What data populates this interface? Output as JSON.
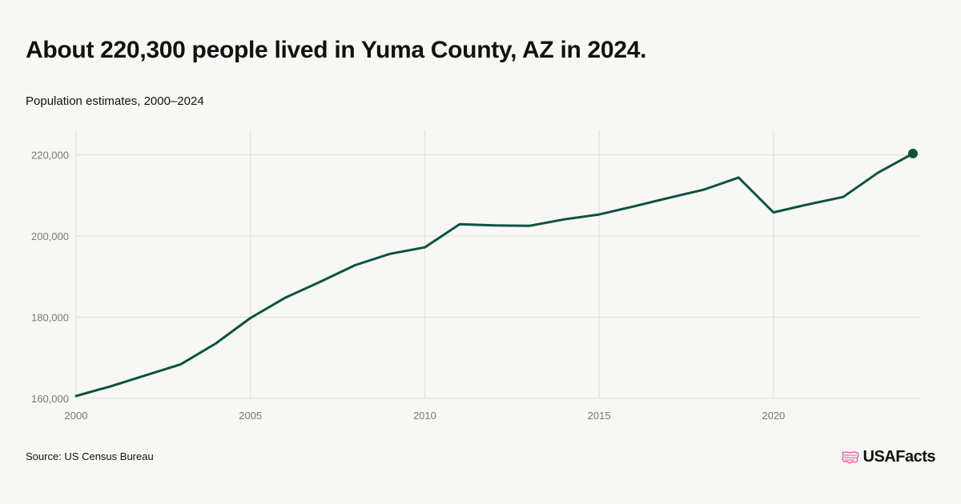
{
  "header": {
    "title": "About 220,300 people lived in Yuma County, AZ in 2024.",
    "subtitle": "Population estimates, 2000–2024"
  },
  "footer": {
    "source": "Source: US Census Bureau",
    "brand": "USAFacts"
  },
  "colors": {
    "line": "#0d5240",
    "grid": "#dedede",
    "tick_text": "#777777",
    "background": "#f7f7f3"
  },
  "chart_data": {
    "type": "line",
    "title": "About 220,300 people lived in Yuma County, AZ in 2024.",
    "subtitle": "Population estimates, 2000–2024",
    "xlabel": "",
    "ylabel": "",
    "x": [
      2000,
      2001,
      2002,
      2003,
      2004,
      2005,
      2006,
      2007,
      2008,
      2009,
      2010,
      2011,
      2012,
      2013,
      2014,
      2015,
      2016,
      2017,
      2018,
      2019,
      2020,
      2021,
      2022,
      2023,
      2024
    ],
    "series": [
      {
        "values": [
          160600,
          163000,
          165700,
          168400,
          173500,
          179800,
          184800,
          188700,
          192800,
          195600,
          197200,
          202900,
          202600,
          202500,
          204100,
          205300,
          207300,
          209400,
          211400,
          214400,
          205800,
          207800,
          209600,
          215600,
          220300
        ]
      }
    ],
    "xlim": [
      2000,
      2024
    ],
    "ylim": [
      160000,
      226000
    ],
    "x_ticks": [
      2000,
      2005,
      2010,
      2015,
      2020
    ],
    "x_tick_labels": [
      "2000",
      "2005",
      "2010",
      "2015",
      "2020"
    ],
    "y_ticks": [
      160000,
      180000,
      200000,
      220000
    ],
    "y_tick_labels": [
      "160,000",
      "180,000",
      "200,000",
      "220,000"
    ],
    "grid": true,
    "legend": "none",
    "highlight_last_point": true
  }
}
